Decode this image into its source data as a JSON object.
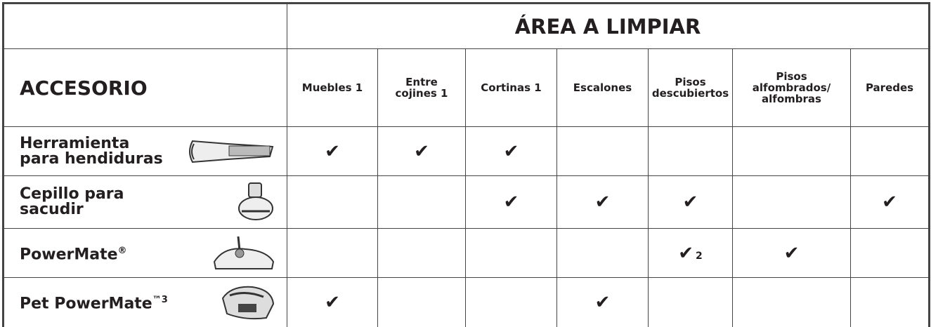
{
  "header": {
    "corner_title": "ACCESORIO",
    "group_title": "ÁREA A LIMPIAR",
    "columns": [
      "Muebles 1",
      "Entre\ncojines 1",
      "Cortinas 1",
      "Escalones",
      "Pisos\ndescubiertos",
      "Pisos\nalfombrados/\nalfombras",
      "Paredes"
    ]
  },
  "rows": [
    {
      "name": "Herramienta\npara hendiduras",
      "cells": [
        "✔",
        "✔",
        "✔",
        null,
        null,
        null,
        null
      ]
    },
    {
      "name": "Cepillo para\nsacudir",
      "cells": [
        null,
        null,
        "✔",
        "✔",
        "✔",
        null,
        "✔"
      ]
    },
    {
      "name": "PowerMate",
      "sup": "®",
      "cells": [
        null,
        null,
        null,
        null,
        {
          "check": "✔",
          "note": "2"
        },
        "✔",
        null
      ]
    },
    {
      "name": "Pet PowerMate",
      "sup": "™3",
      "cells": [
        "✔",
        null,
        null,
        "✔",
        null,
        null,
        null
      ]
    }
  ]
}
